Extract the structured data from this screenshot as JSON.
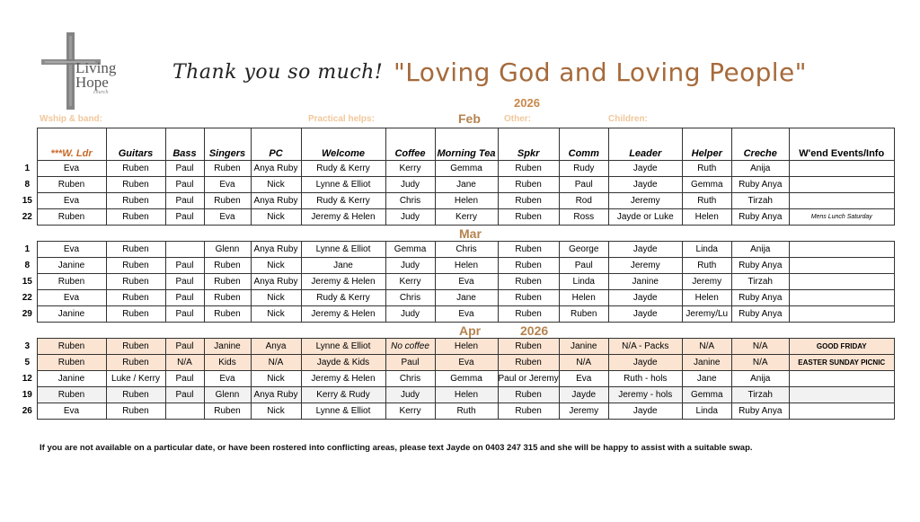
{
  "logo": {
    "line1": "Living",
    "line2": "Hope",
    "line3": "church"
  },
  "header": {
    "thanks": "Thank you so much!",
    "motto": "\"Loving God and Loving People\"",
    "year": "2026"
  },
  "labels": {
    "wship": "Wship & band:",
    "practical": "Practical helps:",
    "other": "Other:",
    "children": "Children:"
  },
  "months": {
    "feb": "Feb",
    "mar": "Mar",
    "apr": "Apr",
    "apr_year": "2026"
  },
  "columns": [
    "***W. Ldr",
    "Guitars",
    "Bass",
    "Singers",
    "PC",
    "Welcome",
    "Coffee",
    "Morning Tea",
    "Spkr",
    "Comm",
    "Leader",
    "Helper",
    "Creche",
    "W'end Events/Info"
  ],
  "feb": [
    [
      "1",
      "Eva",
      "Ruben",
      "Paul",
      "Ruben",
      "Anya Ruby",
      "Rudy & Kerry",
      "Kerry",
      "Gemma",
      "Ruben",
      "Rudy",
      "Jayde",
      "Ruth",
      "Anija",
      ""
    ],
    [
      "8",
      "Ruben",
      "Ruben",
      "Paul",
      "Eva",
      "Nick",
      "Lynne & Elliot",
      "Judy",
      "Jane",
      "Ruben",
      "Paul",
      "Jayde",
      "Gemma",
      "Ruby Anya",
      ""
    ],
    [
      "15",
      "Eva",
      "Ruben",
      "Paul",
      "Ruben",
      "Anya Ruby",
      "Rudy & Kerry",
      "Chris",
      "Helen",
      "Ruben",
      "Rod",
      "Jeremy",
      "Ruth",
      "Tirzah",
      ""
    ],
    [
      "22",
      "Ruben",
      "Ruben",
      "Paul",
      "Eva",
      "Nick",
      "Jeremy & Helen",
      "Judy",
      "Kerry",
      "Ruben",
      "Ross",
      "Jayde or Luke",
      "Helen",
      "Ruby Anya",
      "Mens Lunch Saturday"
    ]
  ],
  "mar": [
    [
      "1",
      "Eva",
      "Ruben",
      "",
      "Glenn",
      "Anya Ruby",
      "Lynne & Elliot",
      "Gemma",
      "Chris",
      "Ruben",
      "George",
      "Jayde",
      "Linda",
      "Anija",
      ""
    ],
    [
      "8",
      "Janine",
      "Ruben",
      "Paul",
      "Ruben",
      "Nick",
      "Jane",
      "Judy",
      "Helen",
      "Ruben",
      "Paul",
      "Jeremy",
      "Ruth",
      "Ruby Anya",
      ""
    ],
    [
      "15",
      "Ruben",
      "Ruben",
      "Paul",
      "Ruben",
      "Anya Ruby",
      "Jeremy & Helen",
      "Kerry",
      "Eva",
      "Ruben",
      "Linda",
      "Janine",
      "Jeremy",
      "Tirzah",
      ""
    ],
    [
      "22",
      "Eva",
      "Ruben",
      "Paul",
      "Ruben",
      "Nick",
      "Rudy & Kerry",
      "Chris",
      "Jane",
      "Ruben",
      "Helen",
      "Jayde",
      "Helen",
      "Ruby Anya",
      ""
    ],
    [
      "29",
      "Janine",
      "Ruben",
      "Paul",
      "Ruben",
      "Nick",
      "Jeremy & Helen",
      "Judy",
      "Eva",
      "Ruben",
      "Ruben",
      "Jayde",
      "Jeremy/Lu",
      "Ruby Anya",
      ""
    ]
  ],
  "apr": [
    [
      "3",
      "Ruben",
      "Ruben",
      "Paul",
      "Janine",
      "Anya",
      "Lynne & Elliot",
      "No coffee",
      "Helen",
      "Ruben",
      "Janine",
      "N/A - Packs",
      "N/A",
      "N/A",
      "GOOD FRIDAY"
    ],
    [
      "5",
      "Ruben",
      "Ruben",
      "N/A",
      "Kids",
      "N/A",
      "Jayde & Kids",
      "Paul",
      "Eva",
      "Ruben",
      "N/A",
      "Jayde",
      "Janine",
      "N/A",
      "EASTER SUNDAY PICNIC"
    ],
    [
      "12",
      "Janine",
      "Luke / Kerry",
      "Paul",
      "Eva",
      "Nick",
      "Jeremy & Helen",
      "Chris",
      "Gemma",
      "Paul or Jeremy",
      "Eva",
      "Ruth - hols",
      "Jane",
      "Anija",
      ""
    ],
    [
      "19",
      "Ruben",
      "Ruben",
      "Paul",
      "Glenn",
      "Anya Ruby",
      "Kerry & Rudy",
      "Judy",
      "Helen",
      "Ruben",
      "Jayde",
      "Jeremy - hols",
      "Gemma",
      "Tirzah",
      ""
    ],
    [
      "26",
      "Eva",
      "Ruben",
      "",
      "Ruben",
      "Nick",
      "Lynne & Elliot",
      "Kerry",
      "Ruth",
      "Ruben",
      "Jeremy",
      "Jayde",
      "Linda",
      "Ruby Anya",
      ""
    ]
  ],
  "footer": "If you are not available on a particular date, or have been rostered into conflicting areas, please text Jayde on 0403 247 315 and she will be happy to assist with a suitable swap."
}
